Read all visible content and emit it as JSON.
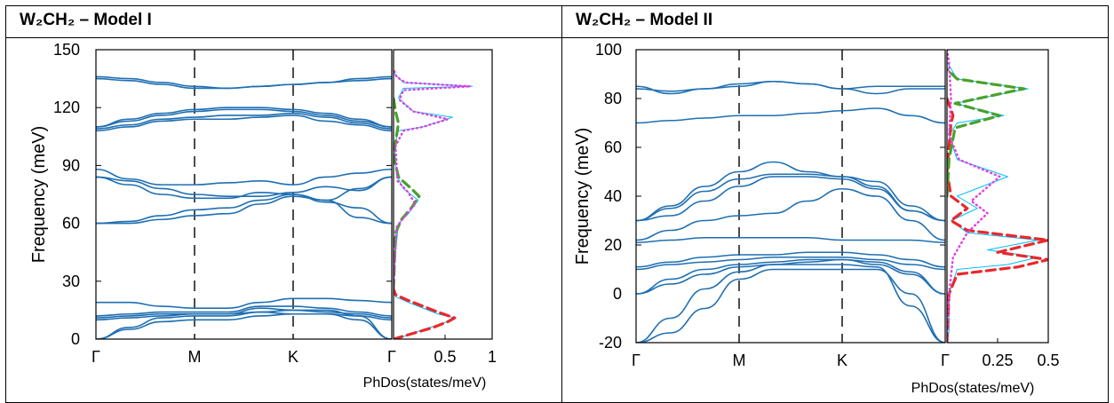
{
  "panels": [
    {
      "title": "W₂CH₂ – Model I",
      "chart_data": {
        "type": "line",
        "ylabel": "Frequency (meV)",
        "ylim": [
          0,
          150
        ],
        "yticks": [
          0,
          30,
          60,
          90,
          120,
          150
        ],
        "kpath_labels": [
          "Γ",
          "M",
          "K",
          "Γ"
        ],
        "dos_xlabel": "PhDos(states/meV)",
        "dos_xlim": [
          0,
          1
        ],
        "dos_xticks": [
          "0.5",
          "1"
        ],
        "band_color": "#1f6fb2",
        "bands": [
          [
            0,
            6,
            11,
            12,
            12,
            14,
            15,
            15,
            12,
            0
          ],
          [
            0,
            5,
            9,
            10,
            10,
            12,
            13,
            13,
            10,
            0
          ],
          [
            10,
            11,
            12,
            13,
            13,
            14,
            13,
            13,
            12,
            10
          ],
          [
            11,
            12,
            13,
            13,
            13,
            16,
            15,
            14,
            13,
            11
          ],
          [
            12,
            13,
            14,
            14,
            14,
            17,
            17,
            16,
            14,
            12
          ],
          [
            19,
            19,
            17,
            16,
            16,
            19,
            21,
            21,
            20,
            19
          ],
          [
            60,
            60,
            62,
            64,
            65,
            70,
            74,
            72,
            63,
            60
          ],
          [
            60,
            61,
            64,
            67,
            68,
            72,
            75,
            71,
            68,
            60
          ],
          [
            84,
            82,
            78,
            75,
            74,
            74,
            76,
            79,
            77,
            84
          ],
          [
            88,
            83,
            80,
            80,
            81,
            82,
            80,
            84,
            86,
            88
          ],
          [
            84,
            80,
            75,
            73,
            73,
            76,
            75,
            72,
            78,
            84
          ],
          [
            108,
            110,
            113,
            114,
            114,
            115,
            116,
            113,
            111,
            108
          ],
          [
            109,
            111,
            114,
            115,
            116,
            116,
            117,
            115,
            112,
            109
          ],
          [
            110,
            113,
            116,
            118,
            119,
            119,
            118,
            116,
            113,
            110
          ],
          [
            110,
            114,
            117,
            119,
            120,
            120,
            119,
            117,
            114,
            110
          ],
          [
            136,
            135,
            133,
            131,
            130,
            131,
            132,
            133,
            135,
            136
          ],
          [
            135,
            134,
            132,
            130,
            130,
            131,
            132,
            133,
            134,
            135
          ]
        ],
        "dos_curves": [
          {
            "color": "#00bfff",
            "style": "solid",
            "points": [
              [
                0,
                0
              ],
              [
                0.15,
                2
              ],
              [
                0.3,
                5
              ],
              [
                0.5,
                8
              ],
              [
                0.62,
                11
              ],
              [
                0.45,
                13
              ],
              [
                0.3,
                16
              ],
              [
                0.15,
                19
              ],
              [
                0.02,
                22
              ],
              [
                0,
                26
              ],
              [
                0.02,
                45
              ],
              [
                0.05,
                60
              ],
              [
                0.15,
                65
              ],
              [
                0.25,
                72
              ],
              [
                0.1,
                78
              ],
              [
                0.03,
                85
              ],
              [
                0.01,
                100
              ],
              [
                0.05,
                108
              ],
              [
                0.3,
                110
              ],
              [
                0.6,
                115
              ],
              [
                0.2,
                118
              ],
              [
                0.05,
                125
              ],
              [
                0.1,
                130
              ],
              [
                0.8,
                131
              ],
              [
                0.1,
                133
              ],
              [
                0,
                138
              ]
            ]
          },
          {
            "color": "#e8282c",
            "style": "dash",
            "points": [
              [
                0,
                0
              ],
              [
                0.2,
                3
              ],
              [
                0.4,
                6
              ],
              [
                0.55,
                9
              ],
              [
                0.62,
                11
              ],
              [
                0.45,
                14
              ],
              [
                0.3,
                17
              ],
              [
                0.15,
                20
              ],
              [
                0.02,
                23
              ],
              [
                0,
                26
              ]
            ]
          },
          {
            "color": "#4aa02c",
            "style": "dash",
            "points": [
              [
                0,
                26
              ],
              [
                0.02,
                55
              ],
              [
                0.08,
                62
              ],
              [
                0.18,
                68
              ],
              [
                0.26,
                74
              ],
              [
                0.18,
                78
              ],
              [
                0.05,
                84
              ],
              [
                0,
                95
              ],
              [
                0.05,
                112
              ],
              [
                0.02,
                118
              ],
              [
                0,
                125
              ]
            ]
          },
          {
            "color": "#e040e0",
            "style": "dot",
            "points": [
              [
                0,
                26
              ],
              [
                0.03,
                58
              ],
              [
                0.12,
                64
              ],
              [
                0.22,
                70
              ],
              [
                0.15,
                76
              ],
              [
                0.04,
                82
              ],
              [
                0.02,
                100
              ],
              [
                0.1,
                108
              ],
              [
                0.3,
                110
              ],
              [
                0.55,
                114
              ],
              [
                0.2,
                118
              ],
              [
                0.06,
                124
              ],
              [
                0.1,
                129
              ],
              [
                0.78,
                131
              ],
              [
                0.12,
                133
              ],
              [
                0.03,
                136
              ],
              [
                0,
                140
              ]
            ]
          }
        ]
      }
    },
    {
      "title": "W₂CH₂ – Model II",
      "chart_data": {
        "type": "line",
        "ylabel": "Frequency (meV)",
        "ylim": [
          -20,
          100
        ],
        "yticks": [
          -20,
          0,
          20,
          40,
          60,
          80,
          100
        ],
        "kpath_labels": [
          "Γ",
          "M",
          "K",
          "Γ"
        ],
        "dos_xlabel": "PhDos(states/meV)",
        "dos_xlim": [
          0,
          0.5
        ],
        "dos_xticks": [
          "0.25",
          "0.5"
        ],
        "band_color": "#1f6fb2",
        "bands": [
          [
            -20,
            -16,
            -6,
            6,
            10,
            10,
            10,
            10,
            0,
            -20
          ],
          [
            -20,
            -10,
            2,
            9,
            12,
            12,
            12,
            11,
            -5,
            -20
          ],
          [
            0,
            4,
            8,
            11,
            12,
            13,
            14,
            12,
            8,
            0
          ],
          [
            0,
            6,
            10,
            12,
            13,
            14,
            14,
            13,
            9,
            0
          ],
          [
            10,
            12,
            13,
            14,
            15,
            15,
            15,
            14,
            12,
            10
          ],
          [
            11,
            13,
            15,
            16,
            16,
            17,
            17,
            16,
            14,
            11
          ],
          [
            21,
            22,
            23,
            23,
            23,
            23,
            22,
            22,
            22,
            21
          ],
          [
            30,
            32,
            38,
            44,
            48,
            48,
            47,
            43,
            34,
            30
          ],
          [
            30,
            36,
            44,
            50,
            54,
            50,
            48,
            46,
            36,
            30
          ],
          [
            22,
            26,
            30,
            32,
            33,
            38,
            43,
            40,
            30,
            22
          ],
          [
            30,
            35,
            42,
            47,
            49,
            49,
            48,
            44,
            34,
            30
          ],
          [
            70,
            71,
            72,
            73,
            73,
            74,
            75,
            76,
            73,
            70
          ],
          [
            84,
            83,
            84,
            85,
            87,
            86,
            84,
            82,
            84,
            84
          ],
          [
            85,
            82,
            84,
            86,
            87,
            86,
            84,
            85,
            85,
            85
          ]
        ],
        "dos_curves": [
          {
            "color": "#00bfff",
            "style": "solid",
            "points": [
              [
                0,
                -20
              ],
              [
                0.01,
                -15
              ],
              [
                0.01,
                0
              ],
              [
                0.05,
                10
              ],
              [
                0.3,
                12
              ],
              [
                0.45,
                15
              ],
              [
                0.2,
                18
              ],
              [
                0.45,
                22
              ],
              [
                0.1,
                25
              ],
              [
                0.02,
                30
              ],
              [
                0.15,
                35
              ],
              [
                0.05,
                40
              ],
              [
                0.3,
                48
              ],
              [
                0.05,
                55
              ],
              [
                0.01,
                65
              ],
              [
                0.05,
                70
              ],
              [
                0.28,
                73
              ],
              [
                0.04,
                78
              ],
              [
                0.4,
                84
              ],
              [
                0.05,
                88
              ],
              [
                0,
                95
              ]
            ]
          },
          {
            "color": "#e8282c",
            "style": "dash",
            "points": [
              [
                0,
                -20
              ],
              [
                0.01,
                0
              ],
              [
                0.05,
                8
              ],
              [
                0.35,
                11
              ],
              [
                0.5,
                14
              ],
              [
                0.25,
                17
              ],
              [
                0.5,
                22
              ],
              [
                0.1,
                26
              ],
              [
                0.02,
                30
              ],
              [
                0.1,
                35
              ],
              [
                0.02,
                40
              ],
              [
                0,
                50
              ],
              [
                0.02,
                70
              ],
              [
                0.03,
                73
              ],
              [
                0,
                80
              ]
            ]
          },
          {
            "color": "#4aa02c",
            "style": "dash",
            "points": [
              [
                0,
                40
              ],
              [
                0.01,
                55
              ],
              [
                0.04,
                68
              ],
              [
                0.26,
                73
              ],
              [
                0.04,
                78
              ],
              [
                0.38,
                84
              ],
              [
                0.05,
                88
              ],
              [
                0,
                92
              ]
            ]
          },
          {
            "color": "#e040e0",
            "style": "dot",
            "points": [
              [
                0,
                -20
              ],
              [
                0.01,
                0
              ],
              [
                0.03,
                15
              ],
              [
                0.1,
                25
              ],
              [
                0.2,
                33
              ],
              [
                0.12,
                38
              ],
              [
                0.26,
                48
              ],
              [
                0.06,
                55
              ],
              [
                0.01,
                65
              ],
              [
                0.02,
                80
              ],
              [
                0.01,
                95
              ],
              [
                0,
                100
              ]
            ]
          }
        ]
      }
    }
  ]
}
